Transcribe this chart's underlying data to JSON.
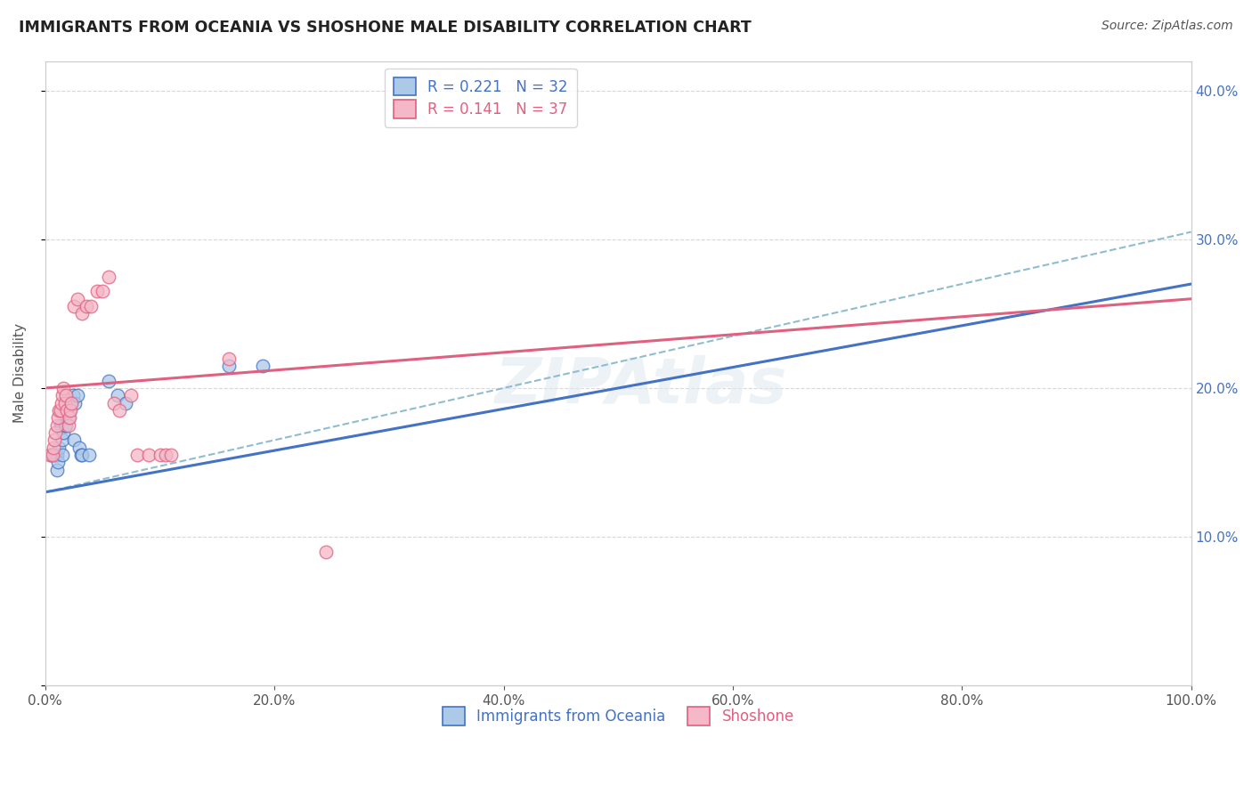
{
  "title": "IMMIGRANTS FROM OCEANIA VS SHOSHONE MALE DISABILITY CORRELATION CHART",
  "source_text": "Source: ZipAtlas.com",
  "xlabel": "",
  "ylabel": "Male Disability",
  "legend_label1": "Immigrants from Oceania",
  "legend_label2": "Shoshone",
  "r1": 0.221,
  "n1": 32,
  "r2": 0.141,
  "n2": 37,
  "color1": "#adc9e8",
  "color2": "#f4b8c8",
  "line1_color": "#4472c4",
  "line2_color": "#e06080",
  "dash_color": "#90bcd0",
  "watermark": "ZIPAtlas",
  "xlim": [
    0.0,
    1.0
  ],
  "ylim": [
    0.0,
    0.42
  ],
  "xticks": [
    0.0,
    0.2,
    0.4,
    0.6,
    0.8,
    1.0
  ],
  "yticks": [
    0.0,
    0.1,
    0.2,
    0.3,
    0.4
  ],
  "xticklabels": [
    "0.0%",
    "20.0%",
    "40.0%",
    "60.0%",
    "80.0%",
    "100.0%"
  ],
  "left_yticklabels": [
    "",
    "",
    "",
    "",
    ""
  ],
  "right_yticklabels": [
    "",
    "10.0%",
    "20.0%",
    "30.0%",
    "40.0%"
  ],
  "trendline1_x": [
    0.0,
    1.0
  ],
  "trendline1_y": [
    0.13,
    0.27
  ],
  "trendline2_x": [
    0.0,
    1.0
  ],
  "trendline2_y": [
    0.2,
    0.26
  ],
  "dashline_x": [
    0.0,
    1.0
  ],
  "dashline_y": [
    0.13,
    0.305
  ],
  "scatter1_x": [
    0.005,
    0.007,
    0.008,
    0.009,
    0.01,
    0.01,
    0.011,
    0.012,
    0.013,
    0.014,
    0.015,
    0.015,
    0.016,
    0.017,
    0.017,
    0.018,
    0.02,
    0.021,
    0.022,
    0.024,
    0.025,
    0.026,
    0.028,
    0.03,
    0.031,
    0.032,
    0.038,
    0.055,
    0.063,
    0.07,
    0.16,
    0.19
  ],
  "scatter1_y": [
    0.155,
    0.155,
    0.155,
    0.155,
    0.145,
    0.155,
    0.15,
    0.16,
    0.175,
    0.175,
    0.155,
    0.165,
    0.17,
    0.175,
    0.185,
    0.175,
    0.18,
    0.185,
    0.19,
    0.195,
    0.165,
    0.19,
    0.195,
    0.16,
    0.155,
    0.155,
    0.155,
    0.205,
    0.195,
    0.19,
    0.215,
    0.215
  ],
  "scatter2_x": [
    0.004,
    0.006,
    0.007,
    0.008,
    0.009,
    0.01,
    0.011,
    0.012,
    0.013,
    0.014,
    0.015,
    0.016,
    0.017,
    0.018,
    0.019,
    0.02,
    0.021,
    0.022,
    0.023,
    0.025,
    0.028,
    0.032,
    0.036,
    0.04,
    0.045,
    0.05,
    0.055,
    0.06,
    0.065,
    0.075,
    0.08,
    0.09,
    0.1,
    0.105,
    0.11,
    0.16,
    0.245
  ],
  "scatter2_y": [
    0.155,
    0.155,
    0.16,
    0.165,
    0.17,
    0.175,
    0.18,
    0.185,
    0.185,
    0.19,
    0.195,
    0.2,
    0.19,
    0.195,
    0.185,
    0.175,
    0.18,
    0.185,
    0.19,
    0.255,
    0.26,
    0.25,
    0.255,
    0.255,
    0.265,
    0.265,
    0.275,
    0.19,
    0.185,
    0.195,
    0.155,
    0.155,
    0.155,
    0.155,
    0.155,
    0.22,
    0.09
  ]
}
